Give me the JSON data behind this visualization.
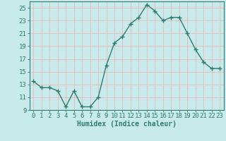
{
  "x": [
    0,
    1,
    2,
    3,
    4,
    5,
    6,
    7,
    8,
    9,
    10,
    11,
    12,
    13,
    14,
    15,
    16,
    17,
    18,
    19,
    20,
    21,
    22,
    23
  ],
  "y": [
    13.5,
    12.5,
    12.5,
    12.0,
    9.5,
    12.0,
    9.5,
    9.5,
    11.0,
    16.0,
    19.5,
    20.5,
    22.5,
    23.5,
    25.5,
    24.5,
    23.0,
    23.5,
    23.5,
    21.0,
    18.5,
    16.5,
    15.5,
    15.5
  ],
  "line_color": "#2e7d6e",
  "marker": "+",
  "marker_size": 4,
  "marker_linewidth": 1.0,
  "background_color": "#c8eaea",
  "grid_color": "#e8b8b8",
  "xlabel": "Humidex (Indice chaleur)",
  "xlim": [
    -0.5,
    23.5
  ],
  "ylim": [
    9,
    26
  ],
  "yticks": [
    9,
    11,
    13,
    15,
    17,
    19,
    21,
    23,
    25
  ],
  "xticks": [
    0,
    1,
    2,
    3,
    4,
    5,
    6,
    7,
    8,
    9,
    10,
    11,
    12,
    13,
    14,
    15,
    16,
    17,
    18,
    19,
    20,
    21,
    22,
    23
  ],
  "tick_color": "#2e7d6e",
  "axis_color": "#2e7d6e",
  "xlabel_fontsize": 7,
  "tick_fontsize": 6.5,
  "line_width": 1.0
}
